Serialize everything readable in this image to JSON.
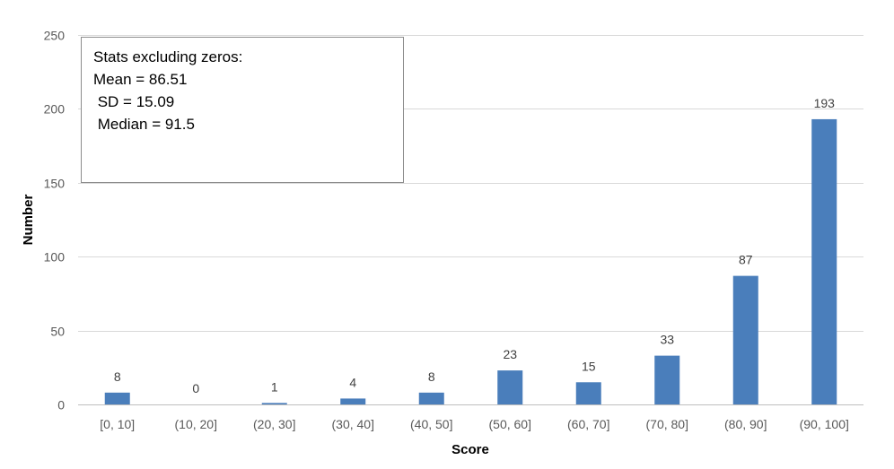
{
  "chart_data": {
    "type": "bar",
    "categories": [
      "[0, 10]",
      "(10, 20]",
      "(20, 30]",
      "(30, 40]",
      "(40, 50]",
      "(50, 60]",
      "(60, 70]",
      "(70, 80]",
      "(80, 90]",
      "(90, 100]"
    ],
    "values": [
      8,
      0,
      1,
      4,
      8,
      23,
      15,
      33,
      87,
      193
    ],
    "title": "",
    "xlabel": "Score",
    "ylabel": "Number",
    "ylim": [
      0,
      250
    ],
    "yticks": [
      0,
      50,
      100,
      150,
      200,
      250
    ],
    "grid": true,
    "legend": "none",
    "bar_color": "#4a7ebb",
    "data_labels": true,
    "annotation": {
      "title": "Stats excluding zeros:",
      "mean": "Mean = 86.51",
      "sd": " SD = 15.09",
      "median": " Median = 91.5"
    }
  }
}
